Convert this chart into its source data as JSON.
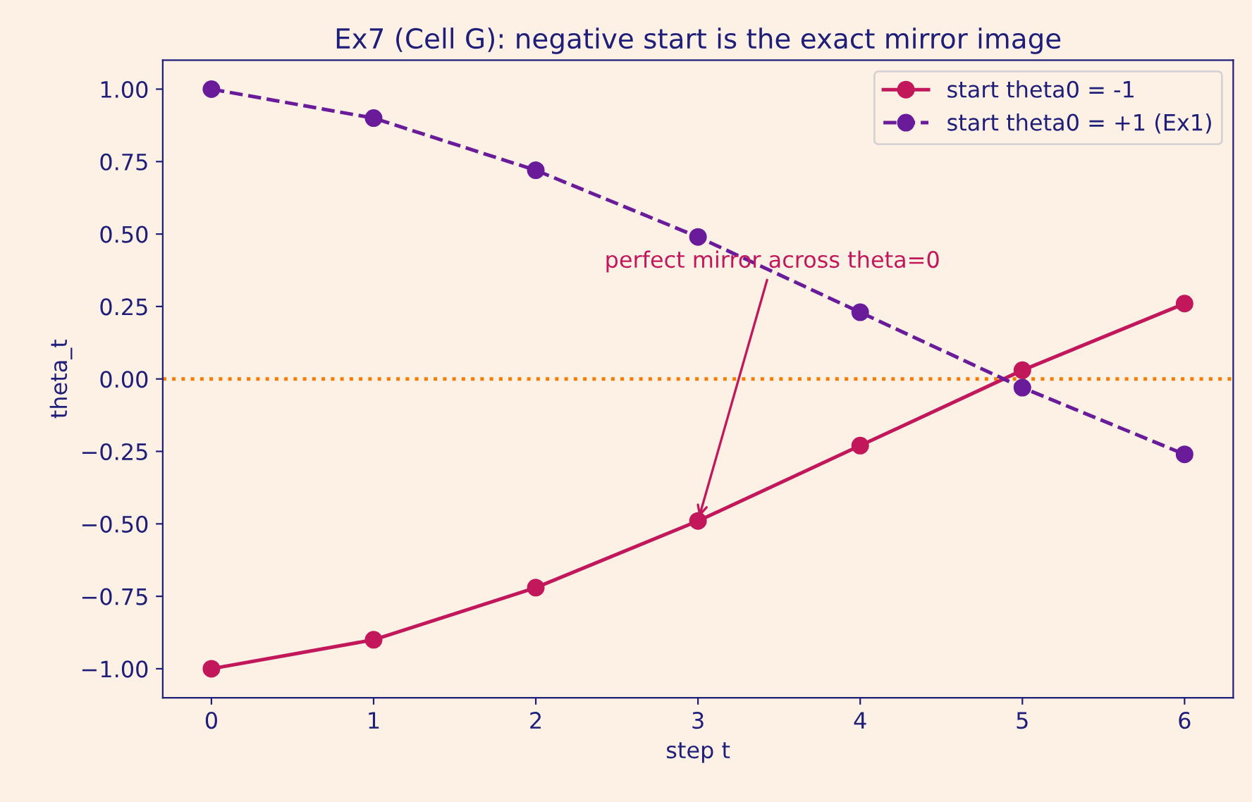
{
  "chart_data": {
    "type": "line",
    "title": "Ex7 (Cell G): negative start is the exact mirror image",
    "xlabel": "step t",
    "ylabel": "theta_t",
    "x": [
      0,
      1,
      2,
      3,
      4,
      5,
      6
    ],
    "series": [
      {
        "name": "start theta0 = -1",
        "color": "#c2185b",
        "values": [
          -1.0,
          -0.9,
          -0.72,
          -0.49,
          -0.23,
          0.03,
          0.26
        ],
        "line_style": "solid"
      },
      {
        "name": "start theta0 = +1 (Ex1)",
        "color": "#6a1b9a",
        "values": [
          1.0,
          0.9,
          0.72,
          0.49,
          0.23,
          -0.03,
          -0.26
        ],
        "line_style": "dashed"
      }
    ],
    "marker": "circle",
    "xlim": [
      -0.3,
      6.3
    ],
    "ylim": [
      -1.1,
      1.1
    ],
    "xticks": [
      0,
      1,
      2,
      3,
      4,
      5,
      6
    ],
    "yticks": [
      {
        "value": -1.0,
        "label": "−1.00"
      },
      {
        "value": -0.75,
        "label": "−0.75"
      },
      {
        "value": -0.5,
        "label": "−0.50"
      },
      {
        "value": -0.25,
        "label": "−0.25"
      },
      {
        "value": 0.0,
        "label": "0.00"
      },
      {
        "value": 0.25,
        "label": "0.25"
      },
      {
        "value": 0.5,
        "label": "0.50"
      },
      {
        "value": 0.75,
        "label": "0.75"
      },
      {
        "value": 1.0,
        "label": "1.00"
      }
    ],
    "ref_lines": [
      {
        "axis": "y",
        "value": 0,
        "color": "#f57c00",
        "line_style": "dotted"
      }
    ],
    "annotations": [
      {
        "text": "perfect mirror across theta=0",
        "x": 3,
        "y": -0.49
      }
    ],
    "grid": false,
    "legend": "top right"
  }
}
